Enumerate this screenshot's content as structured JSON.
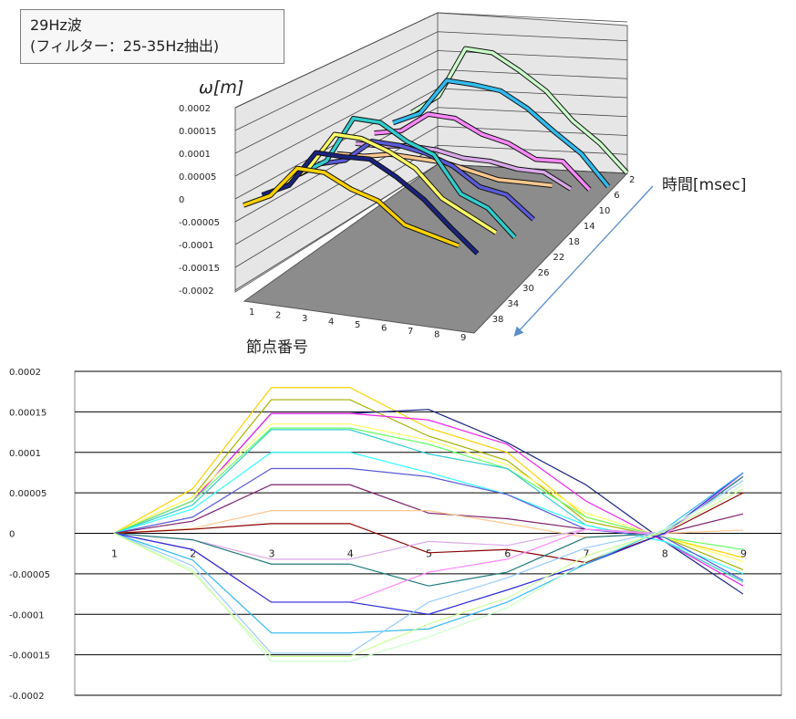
{
  "annotation": {
    "line1": "29Hz波",
    "line2": "(フィルター：25-35Hz抽出)"
  },
  "chart_data": [
    {
      "type": "line",
      "view": "3d",
      "zlabel": "ω[m]",
      "zticks": [
        "0.0002",
        "0.00015",
        "0.0001",
        "0.00005",
        "0",
        "-0.00005",
        "-0.0001",
        "-0.00015",
        "-0.0002"
      ],
      "zlim": [
        -0.0002,
        0.0002
      ],
      "xlabel": "節点番号",
      "xticks": [
        "1",
        "2",
        "3",
        "4",
        "5",
        "6",
        "7",
        "8",
        "9"
      ],
      "ylabel": "時間[msec]",
      "yticks": [
        "2",
        "6",
        "10",
        "14",
        "18",
        "22",
        "26",
        "30",
        "34",
        "38"
      ],
      "floor_color": "#8c8c8c",
      "wall_color": "#e6e6e6"
    },
    {
      "type": "line",
      "categories": [
        "1",
        "2",
        "3",
        "4",
        "5",
        "6",
        "7",
        "8",
        "9"
      ],
      "ylim": [
        -0.0002,
        0.0002
      ],
      "yticks": [
        "0.0002",
        "0.00015",
        "0.0001",
        "0.00005",
        "0",
        "-0.00005",
        "-0.0001",
        "-0.00015",
        "-0.0002"
      ],
      "grid": true,
      "series": [
        {
          "color": "#ffd200",
          "values": [
            0,
            5.5e-05,
            0.00018,
            0.00018,
            0.00013,
            0.0001,
            2e-05,
            -5e-06,
            -3e-05
          ]
        },
        {
          "color": "#a5b000",
          "values": [
            0,
            4.5e-05,
            0.000165,
            0.000165,
            0.00012,
            9e-05,
            1.5e-05,
            -5e-06,
            -4.5e-05
          ]
        },
        {
          "color": "#1a237e",
          "values": [
            0,
            4e-05,
            0.000148,
            0.000148,
            0.000153,
            0.000112,
            6e-05,
            -1e-05,
            -7.5e-05
          ]
        },
        {
          "color": "#ee22ee",
          "values": [
            0,
            4e-05,
            0.000148,
            0.000148,
            0.00014,
            0.00011,
            4e-05,
            -1e-05,
            -6.5e-05
          ]
        },
        {
          "color": "#ffff66",
          "values": [
            0,
            4.5e-05,
            0.000135,
            0.000135,
            0.000115,
            8.5e-05,
            2.5e-05,
            -5e-06,
            -3.5e-05
          ]
        },
        {
          "color": "#66ff66",
          "values": [
            0,
            4e-05,
            0.00013,
            0.00013,
            0.00011,
            8e-05,
            2e-05,
            -5e-06,
            -2e-05
          ]
        },
        {
          "color": "#33cccc",
          "values": [
            0,
            3.5e-05,
            0.000128,
            0.000128,
            9.8e-05,
            8e-05,
            1e-05,
            -1e-05,
            -6e-05
          ]
        },
        {
          "color": "#33ffff",
          "values": [
            0,
            3e-05,
            0.0001,
            0.0001,
            7.5e-05,
            4.8e-05,
            1e-05,
            -1e-05,
            -5e-05
          ]
        },
        {
          "color": "#5b5bd6",
          "values": [
            0,
            2e-05,
            8e-05,
            8e-05,
            7e-05,
            4.8e-05,
            5e-06,
            -5e-06,
            -5.8e-05
          ]
        },
        {
          "color": "#7b1f6a",
          "values": [
            0,
            1.5e-05,
            6e-05,
            6e-05,
            2.5e-05,
            1.8e-05,
            5e-06,
            0,
            2.4e-05
          ]
        },
        {
          "color": "#ffc890",
          "values": [
            0,
            6e-06,
            2.8e-05,
            2.8e-05,
            2.8e-05,
            1.2e-05,
            -5e-06,
            0,
            4e-06
          ]
        },
        {
          "color": "#8b0000",
          "values": [
            0,
            5e-06,
            1.2e-05,
            1.2e-05,
            -2.4e-05,
            -2e-05,
            -3.6e-05,
            0,
            5e-05
          ]
        },
        {
          "color": "#d8a8e8",
          "values": [
            0,
            -8e-06,
            -3.2e-05,
            -3.2e-05,
            -1e-05,
            -1.5e-05,
            5e-06,
            0,
            7e-05
          ]
        },
        {
          "color": "#1f7a7a",
          "values": [
            0,
            -8e-06,
            -3.8e-05,
            -3.8e-05,
            -6.5e-05,
            -4.8e-05,
            -5e-06,
            0,
            7e-05
          ]
        },
        {
          "color": "#ff88ff",
          "values": [
            0,
            -2e-05,
            -8.5e-05,
            -8.5e-05,
            -4.8e-05,
            -3.2e-05,
            5e-06,
            -2e-06,
            7.4e-05
          ]
        },
        {
          "color": "#2b2bd8",
          "values": [
            0,
            -2e-05,
            -8.5e-05,
            -8.5e-05,
            -0.0001,
            -7e-05,
            -3.8e-05,
            0,
            7.5e-05
          ]
        },
        {
          "color": "#33bbee",
          "values": [
            0,
            -3.3e-05,
            -0.000123,
            -0.000123,
            -0.000118,
            -8.5e-05,
            -3.8e-05,
            5e-06,
            7.5e-05
          ]
        },
        {
          "color": "#99ccff",
          "values": [
            0,
            -4e-05,
            -0.000148,
            -0.000148,
            -8.5e-05,
            -5.5e-05,
            -1.8e-05,
            3e-06,
            6.5e-05
          ]
        },
        {
          "color": "#ccffcc",
          "values": [
            0,
            -4.5e-05,
            -0.000158,
            -0.000158,
            -0.000128,
            -9.2e-05,
            -3.5e-05,
            5e-06,
            6e-05
          ]
        },
        {
          "color": "#ccff99",
          "values": [
            0,
            -4.8e-05,
            -0.000152,
            -0.000152,
            -0.000112,
            -8e-05,
            -2.8e-05,
            2e-06,
            5.5e-05
          ]
        }
      ]
    }
  ]
}
